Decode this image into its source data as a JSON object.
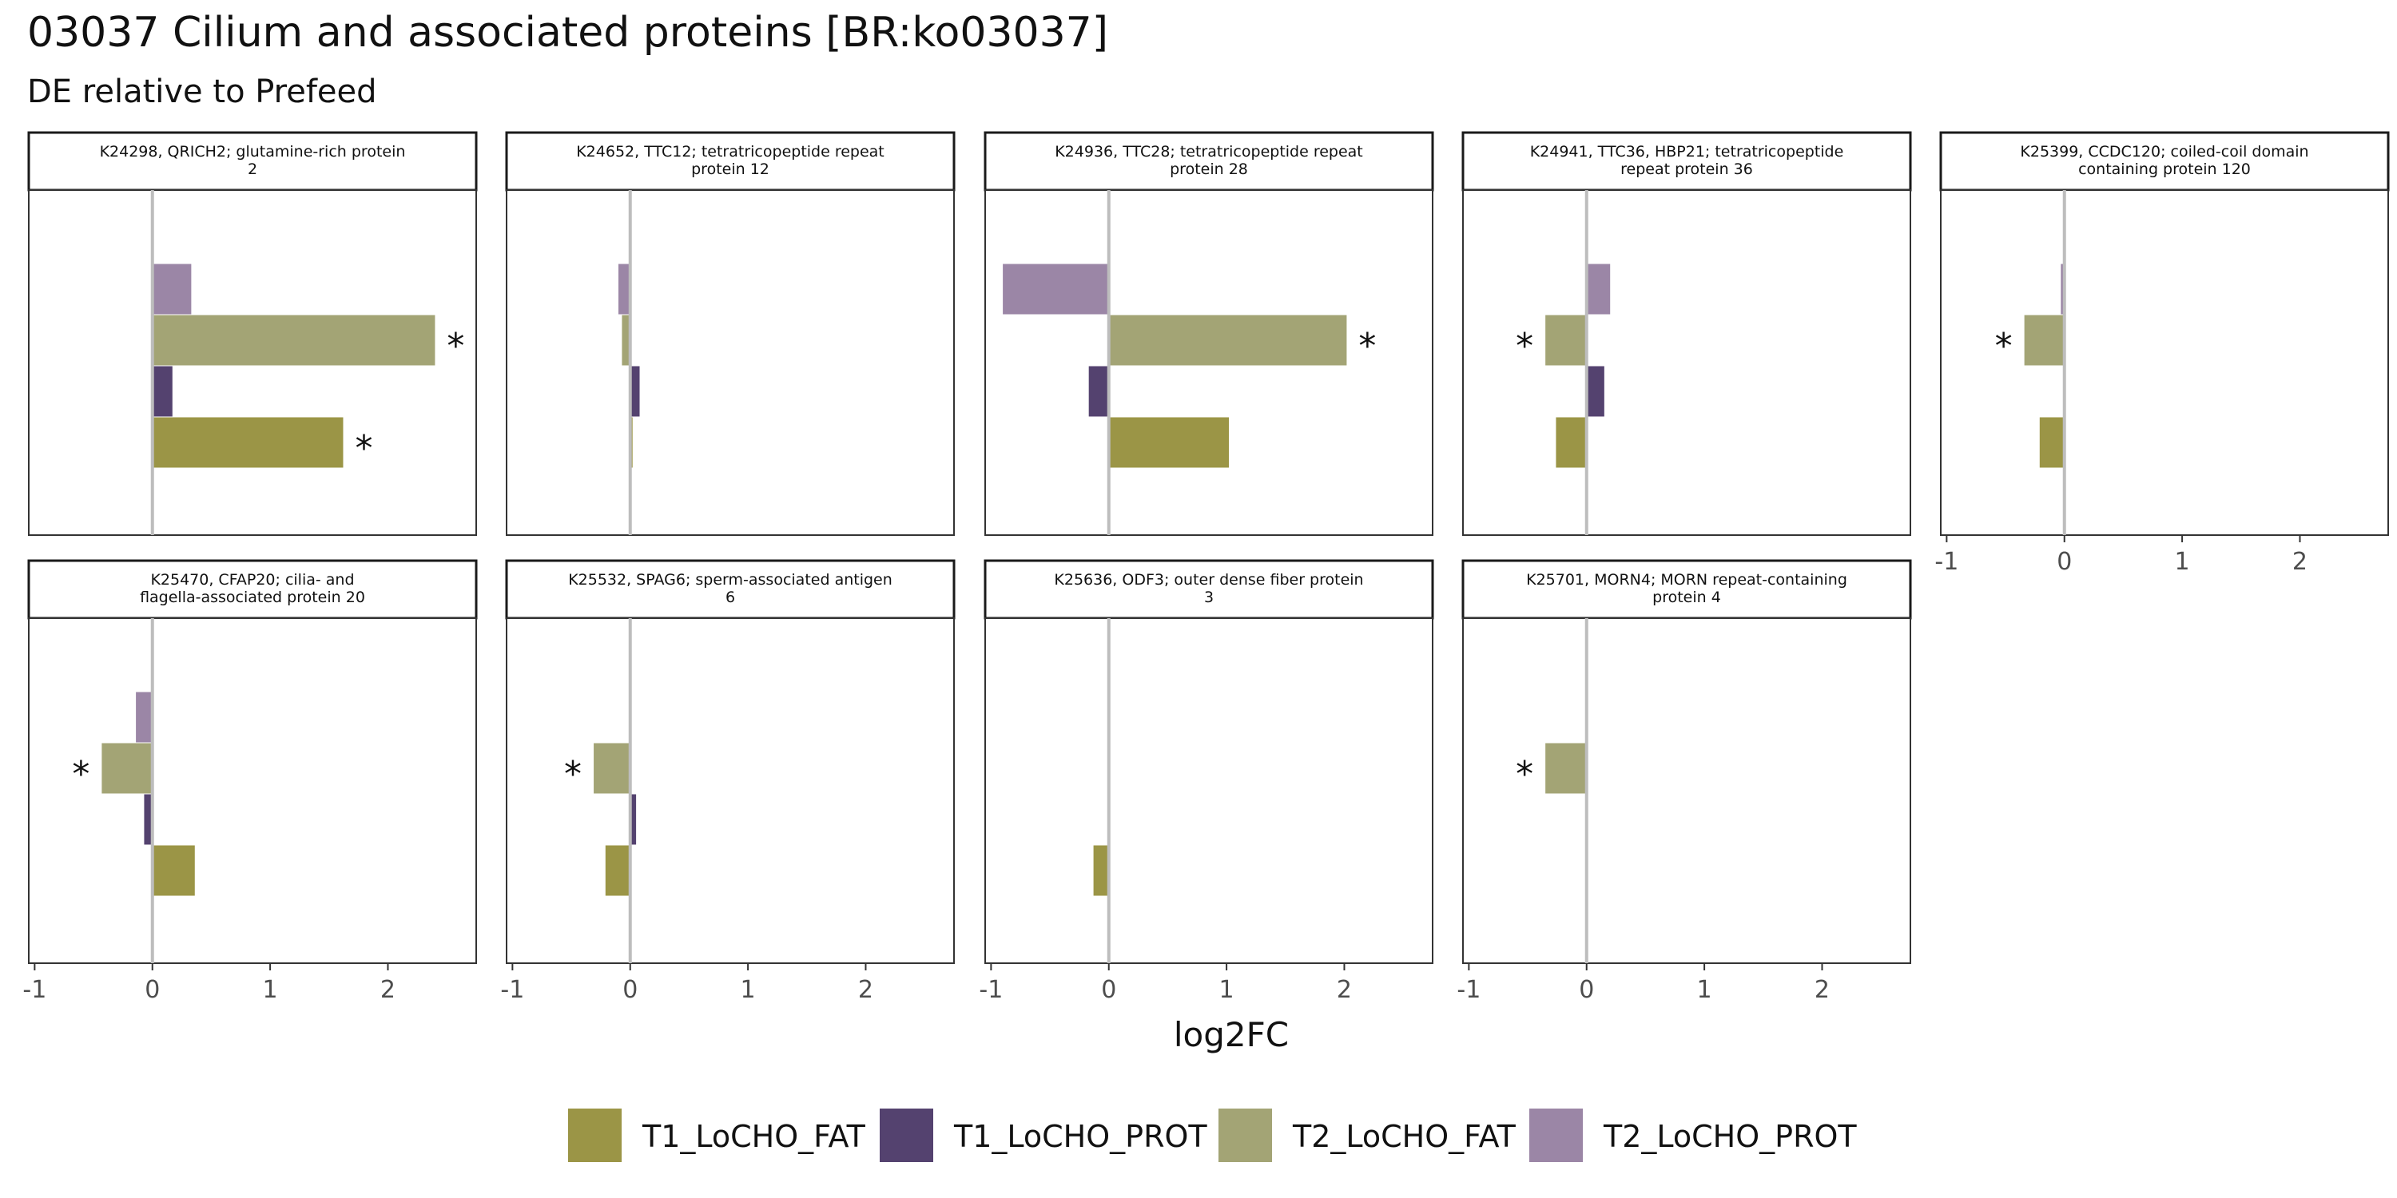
{
  "chart_data": {
    "type": "bar",
    "orientation": "horizontal",
    "title": "03037 Cilium and associated proteins [BR:ko03037]",
    "subtitle": "DE relative to Prefeed",
    "xlabel": "log2FC",
    "xlim": [
      -1.05,
      2.75
    ],
    "xticks": [
      -1,
      0,
      1,
      2
    ],
    "xtick_labels": [
      "-1",
      "0",
      "1",
      "2"
    ],
    "grid": false,
    "legend_position": "bottom",
    "significance_marker": "*",
    "series": [
      {
        "name": "T1_LoCHO_FAT",
        "color": "#9b9546"
      },
      {
        "name": "T1_LoCHO_PROT",
        "color": "#54426f"
      },
      {
        "name": "T2_LoCHO_FAT",
        "color": "#a3a475"
      },
      {
        "name": "T2_LoCHO_PROT",
        "color": "#9b86a6"
      }
    ],
    "panels": [
      {
        "label": [
          "K24298, QRICH2; glutamine-rich protein",
          "2"
        ],
        "values": {
          "T2_LoCHO_PROT": 0.33,
          "T2_LoCHO_FAT": 2.4,
          "T1_LoCHO_PROT": 0.17,
          "T1_LoCHO_FAT": 1.62
        },
        "significant": [
          "T2_LoCHO_FAT",
          "T1_LoCHO_FAT"
        ]
      },
      {
        "label": [
          "K24652, TTC12; tetratricopeptide repeat",
          "protein 12"
        ],
        "values": {
          "T2_LoCHO_PROT": -0.1,
          "T2_LoCHO_FAT": -0.07,
          "T1_LoCHO_PROT": 0.08,
          "T1_LoCHO_FAT": 0.02
        },
        "significant": []
      },
      {
        "label": [
          "K24936, TTC28; tetratricopeptide repeat",
          "protein 28"
        ],
        "values": {
          "T2_LoCHO_PROT": -0.9,
          "T2_LoCHO_FAT": 2.02,
          "T1_LoCHO_PROT": -0.17,
          "T1_LoCHO_FAT": 1.02
        },
        "significant": [
          "T2_LoCHO_FAT"
        ]
      },
      {
        "label": [
          "K24941, TTC36, HBP21; tetratricopeptide",
          "repeat protein 36"
        ],
        "values": {
          "T2_LoCHO_PROT": 0.2,
          "T2_LoCHO_FAT": -0.35,
          "T1_LoCHO_PROT": 0.15,
          "T1_LoCHO_FAT": -0.26
        },
        "significant": [
          "T2_LoCHO_FAT"
        ]
      },
      {
        "label": [
          "K25399, CCDC120; coiled-coil domain",
          "containing protein 120"
        ],
        "values": {
          "T2_LoCHO_PROT": -0.03,
          "T2_LoCHO_FAT": -0.34,
          "T1_LoCHO_PROT": 0.0,
          "T1_LoCHO_FAT": -0.21
        },
        "significant": [
          "T2_LoCHO_FAT"
        ]
      },
      {
        "label": [
          "K25470, CFAP20; cilia- and",
          "flagella-associated protein 20"
        ],
        "values": {
          "T2_LoCHO_PROT": -0.14,
          "T2_LoCHO_FAT": -0.43,
          "T1_LoCHO_PROT": -0.07,
          "T1_LoCHO_FAT": 0.36
        },
        "significant": [
          "T2_LoCHO_FAT"
        ]
      },
      {
        "label": [
          "K25532, SPAG6; sperm-associated antigen",
          "6"
        ],
        "values": {
          "T2_LoCHO_PROT": -0.01,
          "T2_LoCHO_FAT": -0.31,
          "T1_LoCHO_PROT": 0.05,
          "T1_LoCHO_FAT": -0.21
        },
        "significant": [
          "T2_LoCHO_FAT"
        ]
      },
      {
        "label": [
          "K25636, ODF3; outer dense fiber protein",
          "3"
        ],
        "values": {
          "T2_LoCHO_PROT": 0.0,
          "T2_LoCHO_FAT": 0.0,
          "T1_LoCHO_PROT": 0.0,
          "T1_LoCHO_FAT": -0.13
        },
        "significant": []
      },
      {
        "label": [
          "K25701, MORN4; MORN repeat-containing",
          "protein 4"
        ],
        "values": {
          "T2_LoCHO_PROT": 0.0,
          "T2_LoCHO_FAT": -0.35,
          "T1_LoCHO_PROT": 0.0,
          "T1_LoCHO_FAT": 0.0
        },
        "significant": [
          "T2_LoCHO_FAT"
        ]
      }
    ]
  }
}
